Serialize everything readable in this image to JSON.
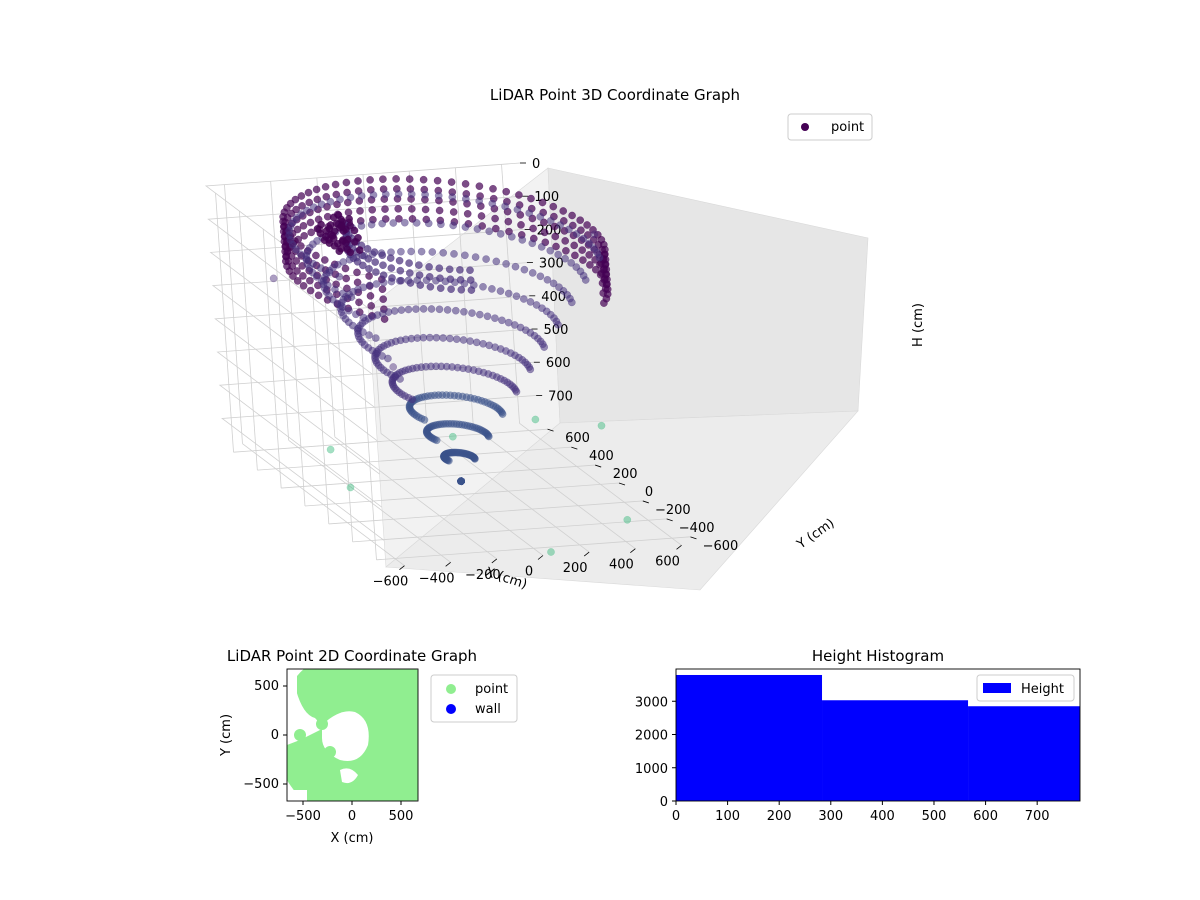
{
  "chart_data": [
    {
      "type": "scatter",
      "projection": "3d",
      "title": "LiDAR Point 3D Coordinate Graph",
      "xlabel": "X (cm)",
      "ylabel": "Y (cm)",
      "zlabel": "H (cm)",
      "xticks": [
        "−600",
        "−400",
        "−200",
        "0",
        "200",
        "400",
        "600"
      ],
      "yticks": [
        "−600",
        "−400",
        "−200",
        "0",
        "200",
        "400",
        "600"
      ],
      "zticks": [
        "0",
        "100",
        "200",
        "300",
        "400",
        "500",
        "600",
        "700"
      ],
      "xlim": [
        -680,
        680
      ],
      "ylim": [
        -680,
        680
      ],
      "zlim": [
        0,
        780
      ],
      "z_inverted": true,
      "grid": true,
      "colormap": "viridis",
      "legend": {
        "position": "top-right",
        "entries": [
          {
            "label": "point",
            "color": "#440154"
          }
        ]
      },
      "series": [
        {
          "name": "point",
          "description_structure": {
            "dense_cone": {
              "apex": [
                0,
                0,
                700
              ],
              "base_radius": 600,
              "base_height": 0,
              "angle_range_deg": [
                -20,
                200
              ]
            },
            "outer_ring": {
              "radius": 620,
              "height_range": [
                0,
                120
              ],
              "angle_range_deg": [
                -40,
                220
              ]
            },
            "inner_ring": {
              "radius": 380,
              "height_range": [
                0,
                60
              ],
              "angle_range_deg": [
                150,
                260
              ]
            },
            "cluster": {
              "center": [
                -250,
                420,
                80
              ],
              "spread": 80
            },
            "outliers": [
              {
                "x": -420,
                "y": 120,
                "z": 770
              },
              {
                "x": -300,
                "y": 520,
                "z": 770
              },
              {
                "x": 250,
                "y": 560,
                "z": 770
              },
              {
                "x": 650,
                "y": 640,
                "z": 760
              },
              {
                "x": -560,
                "y": -620,
                "z": 200
              },
              {
                "x": 600,
                "y": -100,
                "z": 0
              },
              {
                "x": 50,
                "y": -650,
                "z": 780
              },
              {
                "x": 520,
                "y": -380,
                "z": 780
              },
              {
                "x": -650,
                "y": 200,
                "z": 150
              },
              {
                "x": 680,
                "y": 120,
                "z": 640
              }
            ]
          }
        }
      ]
    },
    {
      "type": "scatter",
      "title": "LiDAR Point 2D Coordinate Graph",
      "xlabel": "X (cm)",
      "ylabel": "Y (cm)",
      "xticks": [
        "−500",
        "0",
        "500"
      ],
      "yticks": [
        "−500",
        "0",
        "500"
      ],
      "xlim": [
        -680,
        680
      ],
      "ylim": [
        -680,
        680
      ],
      "legend": {
        "position": "top-right-outside",
        "entries": [
          {
            "label": "point",
            "color": "#90ee90"
          },
          {
            "label": "wall",
            "color": "#0000ff"
          }
        ]
      },
      "series": [
        {
          "name": "point",
          "color": "#90ee90",
          "note_region": "filled disc radius ~680 centered at origin with voids"
        },
        {
          "name": "wall",
          "color": "#0000ff",
          "values": []
        }
      ]
    },
    {
      "type": "bar",
      "title": "Height Histogram",
      "xlabel": "",
      "ylabel": "",
      "xticks": [
        "0",
        "100",
        "200",
        "300",
        "400",
        "500",
        "600",
        "700"
      ],
      "yticks": [
        "0",
        "1000",
        "2000",
        "3000"
      ],
      "xlim": [
        0,
        783
      ],
      "ylim": [
        0,
        3970
      ],
      "bins": [
        {
          "from": 0,
          "to": 283,
          "count": 3790
        },
        {
          "from": 283,
          "to": 566,
          "count": 3030
        },
        {
          "from": 566,
          "to": 783,
          "count": 2850
        }
      ],
      "color": "#0000ff",
      "legend": {
        "position": "top-right",
        "entries": [
          {
            "label": "Height",
            "color": "#0000ff"
          }
        ]
      }
    }
  ]
}
